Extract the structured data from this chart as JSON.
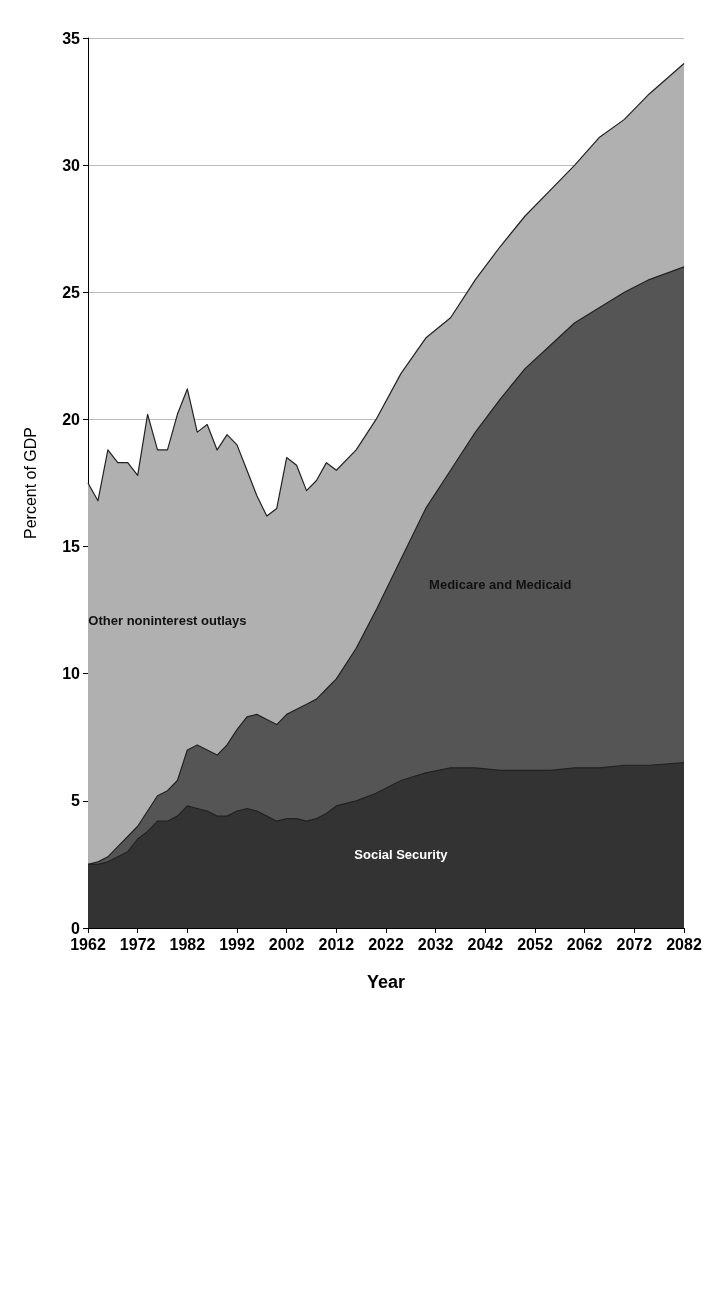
{
  "chart_data": {
    "type": "area",
    "stacked": true,
    "xlabel": "Year",
    "ylabel": "Percent of GDP",
    "x": [
      1962,
      1964,
      1966,
      1968,
      1970,
      1972,
      1974,
      1976,
      1978,
      1980,
      1982,
      1984,
      1986,
      1988,
      1990,
      1992,
      1994,
      1996,
      1998,
      2000,
      2002,
      2004,
      2006,
      2008,
      2010,
      2012,
      2016,
      2020,
      2025,
      2030,
      2035,
      2040,
      2045,
      2050,
      2055,
      2060,
      2065,
      2070,
      2075,
      2082
    ],
    "series": [
      {
        "name": "Social Security",
        "color": "#333333",
        "values": [
          2.5,
          2.5,
          2.6,
          2.8,
          3.0,
          3.5,
          3.8,
          4.2,
          4.2,
          4.4,
          4.8,
          4.7,
          4.6,
          4.4,
          4.4,
          4.6,
          4.7,
          4.6,
          4.4,
          4.2,
          4.3,
          4.3,
          4.2,
          4.3,
          4.5,
          4.8,
          5.0,
          5.3,
          5.8,
          6.1,
          6.3,
          6.3,
          6.2,
          6.2,
          6.2,
          6.3,
          6.3,
          6.4,
          6.4,
          6.5
        ]
      },
      {
        "name": "Medicare and Medicaid",
        "color": "#555555",
        "values": [
          0.0,
          0.1,
          0.2,
          0.4,
          0.6,
          0.5,
          0.8,
          1.0,
          1.2,
          1.4,
          2.2,
          2.5,
          2.4,
          2.4,
          2.8,
          3.2,
          3.6,
          3.8,
          3.8,
          3.8,
          4.1,
          4.3,
          4.6,
          4.7,
          4.9,
          5.0,
          6.0,
          7.2,
          8.7,
          10.4,
          11.7,
          13.2,
          14.6,
          15.8,
          16.7,
          17.5,
          18.1,
          18.6,
          19.1,
          19.5
        ]
      },
      {
        "name": "Other noninterest outlays",
        "color": "#b0b0b0",
        "values": [
          15.0,
          14.2,
          16.0,
          15.1,
          14.7,
          13.8,
          15.6,
          13.6,
          13.4,
          14.4,
          14.2,
          12.3,
          12.8,
          12.0,
          12.2,
          11.2,
          9.7,
          8.6,
          8.0,
          8.5,
          10.1,
          9.6,
          8.4,
          8.6,
          8.9,
          8.2,
          7.8,
          7.5,
          7.3,
          6.7,
          6.0,
          6.0,
          6.0,
          6.0,
          6.1,
          6.2,
          6.7,
          6.8,
          7.3,
          8.0
        ]
      }
    ],
    "xlim": [
      1962,
      2082
    ],
    "xticks": [
      1962,
      1972,
      1982,
      1992,
      2002,
      2012,
      2022,
      2032,
      2042,
      2052,
      2062,
      2072,
      2082
    ],
    "ylim": [
      0,
      35
    ],
    "yticks": [
      0,
      5,
      10,
      15,
      20,
      25,
      30,
      35
    ],
    "grid": "y",
    "legend": false
  }
}
